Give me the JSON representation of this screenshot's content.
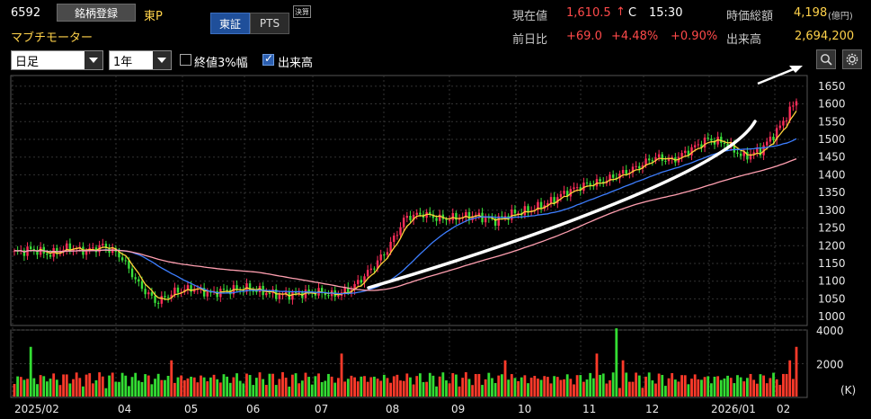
{
  "header": {
    "code": "6592",
    "register_label": "銘柄登録",
    "market": "東P",
    "name": "マブチモーター",
    "tabs": [
      {
        "label": "東証",
        "active": true
      },
      {
        "label": "PTS",
        "active": false
      }
    ],
    "kessan_badge": "決算"
  },
  "quote": {
    "price_label": "現在値",
    "price": "1,610.5",
    "arrow": "↑",
    "flag": "C",
    "time": "15:30",
    "mcap_label": "時価総額",
    "mcap": "4,198",
    "mcap_unit": "(億円)",
    "change_label": "前日比",
    "change": "+69.0",
    "change_pct": "+4.48%",
    "change_pct2": "+0.90%",
    "volume_label": "出来高",
    "volume": "2,694,200"
  },
  "controls": {
    "interval": "日足",
    "range": "1年",
    "cb_band_label": "終値3%幅",
    "cb_band_checked": false,
    "cb_volume_label": "出来高",
    "cb_volume_checked": true
  },
  "colors": {
    "up": "#ff2d5a",
    "down": "#3ae03a",
    "ma_short": "#ffd23a",
    "ma_mid": "#3d7eff",
    "ma_long": "#ff9fb0",
    "grid": "#333333",
    "vol_up": "#ff3a2a",
    "vol_down": "#33dd33",
    "arrow": "#ffffff"
  },
  "chart_data": {
    "type": "candlestick",
    "price_axis": {
      "ticks": [
        1000,
        1050,
        1100,
        1150,
        1200,
        1250,
        1300,
        1350,
        1400,
        1450,
        1500,
        1550,
        1600,
        1650
      ],
      "range": [
        975,
        1680
      ]
    },
    "volume_axis": {
      "ticks": [
        "2000",
        "4000"
      ],
      "unit": "(K)",
      "range": [
        0,
        4000
      ]
    },
    "x_labels": [
      "2025/02",
      "04",
      "05",
      "06",
      "07",
      "08",
      "09",
      "10",
      "11",
      "12",
      "2026/01",
      "02"
    ],
    "trend_points": [
      1180,
      1190,
      1175,
      1195,
      1185,
      1200,
      1170,
      1090,
      1040,
      1070,
      1080,
      1065,
      1075,
      1080,
      1070,
      1060,
      1065,
      1070,
      1060,
      1080,
      1130,
      1190,
      1280,
      1290,
      1275,
      1280,
      1285,
      1270,
      1290,
      1300,
      1320,
      1350,
      1370,
      1380,
      1400,
      1420,
      1450,
      1440,
      1470,
      1500,
      1490,
      1450,
      1470,
      1530,
      1610
    ],
    "volume_bars": 240
  },
  "annotations": {
    "trend_arrow": "white curved arrow"
  }
}
